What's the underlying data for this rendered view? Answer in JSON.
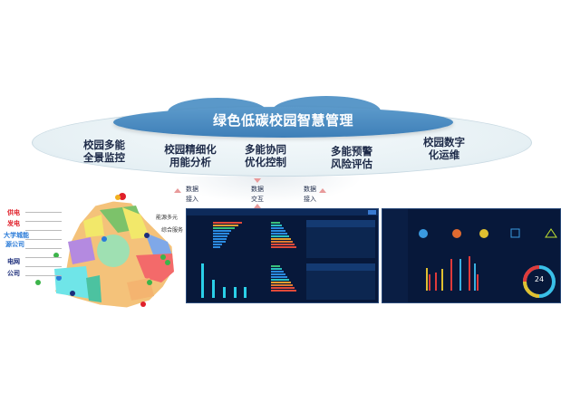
{
  "header": {
    "title": "绿色低碳校园智慧管理"
  },
  "features": [
    {
      "line1": "校园多能",
      "line2": "全景监控"
    },
    {
      "line1": "校园精细化",
      "line2": "用能分析"
    },
    {
      "line1": "多能协同",
      "line2": "优化控制"
    },
    {
      "line1": "多能预警",
      "line2": "风险评估"
    },
    {
      "line1": "校园数字",
      "line2": "化运维"
    }
  ],
  "flows": [
    {
      "line1": "数据",
      "line2": "接入",
      "direction": "up"
    },
    {
      "line1": "数据",
      "line2": "交互",
      "direction": "both"
    },
    {
      "line1": "数据",
      "line2": "接入",
      "direction": "up"
    }
  ],
  "map": {
    "legend_groups": [
      {
        "label": "供电",
        "color": "#e0202a"
      },
      {
        "label": "发电",
        "color": "#e0202a"
      },
      {
        "label": "大学城能",
        "color": "#2a7bd8"
      },
      {
        "label": "源公司",
        "color": "#2a7bd8"
      },
      {
        "label": "电网",
        "color": "#1c2d7a"
      },
      {
        "label": "公司",
        "color": "#1c2d7a"
      }
    ],
    "side_text": [
      "能源多元",
      "综合服务"
    ]
  },
  "dashboard_right": {
    "gauge_value": "24"
  },
  "colors": {
    "cloud_blue": "#4a8bc2",
    "text_dark": "#1d2a48",
    "dash_bg": "#07183a"
  }
}
